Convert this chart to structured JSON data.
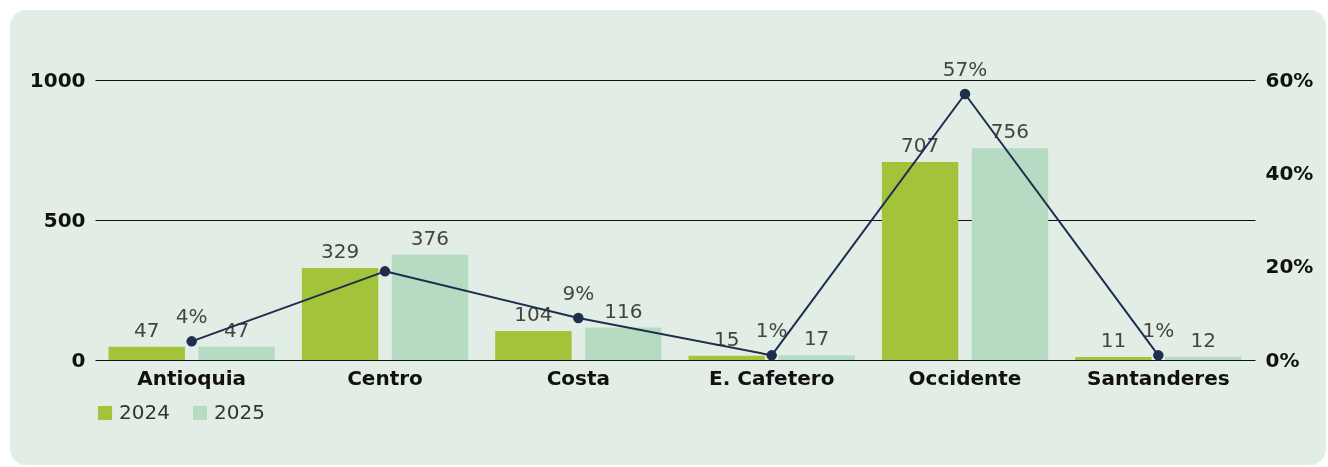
{
  "chart_data": {
    "type": "bar",
    "categories": [
      "Antioquia",
      "Centro",
      "Costa",
      "E. Cafetero",
      "Occidente",
      "Santanderes"
    ],
    "series": [
      {
        "name": "2024",
        "color": "#a3c43a",
        "values": [
          47,
          329,
          104,
          15,
          707,
          11
        ]
      },
      {
        "name": "2025",
        "color": "#b7dbc2",
        "values": [
          47,
          376,
          116,
          17,
          756,
          12
        ]
      },
      {
        "type": "line",
        "axis": "y2",
        "color": "#1f2d4e",
        "values": [
          4,
          19,
          9,
          1,
          57,
          1
        ],
        "value_labels": [
          "4%",
          null,
          "9%",
          "1%",
          "57%",
          "1%"
        ]
      }
    ],
    "data_labels": true,
    "ylim": [
      0,
      1000
    ],
    "yticks": [
      0,
      500,
      1000
    ],
    "y2lim": [
      0,
      60
    ],
    "y2ticks": [
      {
        "value": 0,
        "label": "0%"
      },
      {
        "value": 20,
        "label": "20%"
      },
      {
        "value": 40,
        "label": "40%"
      },
      {
        "value": 60,
        "label": "60%"
      }
    ],
    "grid": "y",
    "legend": "bottom",
    "marker": "circle"
  }
}
